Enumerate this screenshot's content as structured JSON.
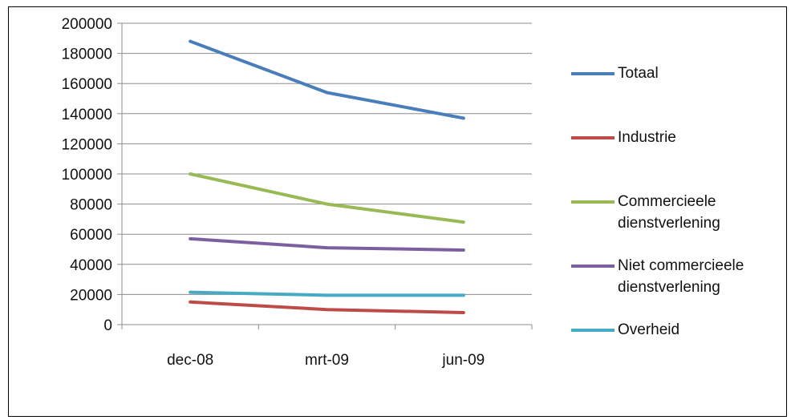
{
  "chart_data": {
    "type": "line",
    "categories": [
      "dec-08",
      "mrt-09",
      "jun-09"
    ],
    "ylim": [
      0,
      200000
    ],
    "yticks": [
      0,
      20000,
      40000,
      60000,
      80000,
      100000,
      120000,
      140000,
      160000,
      180000,
      200000
    ],
    "grid": true,
    "legend_position": "right",
    "series": [
      {
        "name": "Totaal",
        "color": "#4a7ebb",
        "values": [
          188000,
          154000,
          137000
        ]
      },
      {
        "name": "Industrie",
        "color": "#be4b48",
        "values": [
          15000,
          10000,
          8000
        ]
      },
      {
        "name": "Commercieele dienstverlening",
        "color": "#98b954",
        "values": [
          100000,
          80000,
          68000
        ]
      },
      {
        "name": "Niet commercieele dienstverlening",
        "color": "#7d5fa0",
        "values": [
          57000,
          51000,
          49500
        ]
      },
      {
        "name": "Overheid",
        "color": "#46aac5",
        "values": [
          21500,
          19500,
          19500
        ]
      }
    ]
  }
}
